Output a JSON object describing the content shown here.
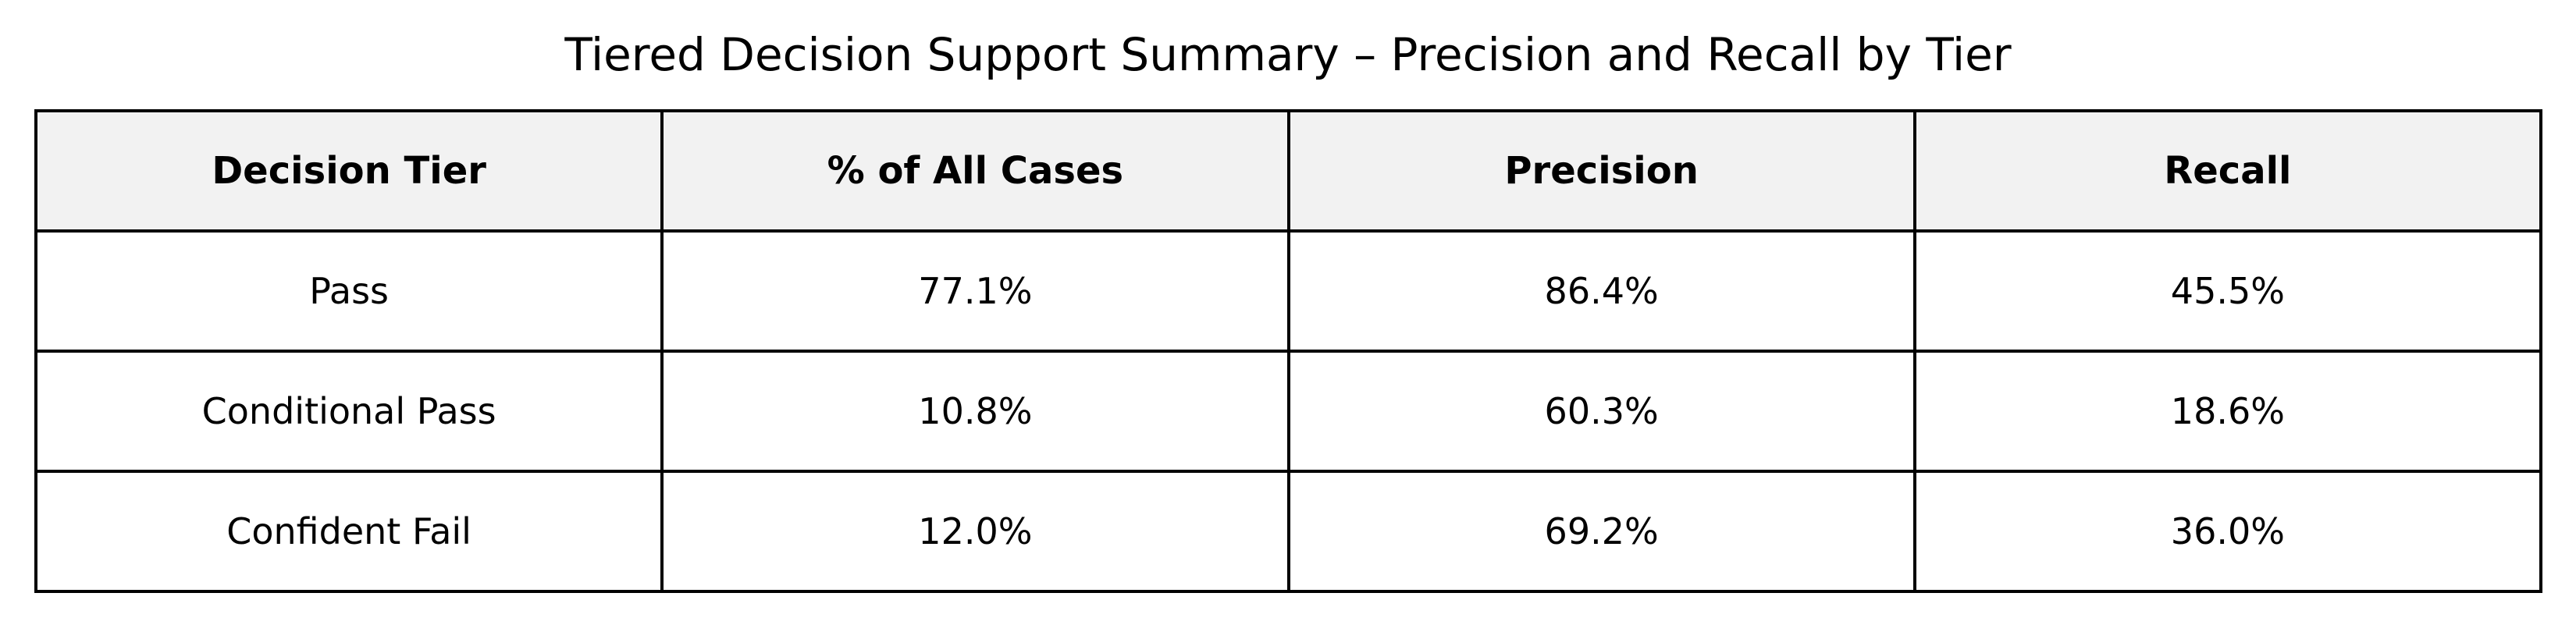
{
  "chart_data": {
    "type": "table",
    "title": "Tiered Decision Support Summary – Precision and Recall by Tier",
    "columns": [
      "Decision Tier",
      "% of All Cases",
      "Precision",
      "Recall"
    ],
    "rows": [
      [
        "Pass",
        "77.1%",
        "86.4%",
        "45.5%"
      ],
      [
        "Conditional Pass",
        "10.8%",
        "60.3%",
        "18.6%"
      ],
      [
        "Confident Fail",
        "12.0%",
        "69.2%",
        "36.0%"
      ]
    ],
    "header_background": "#f2f2f2",
    "border_color": "#000000"
  }
}
